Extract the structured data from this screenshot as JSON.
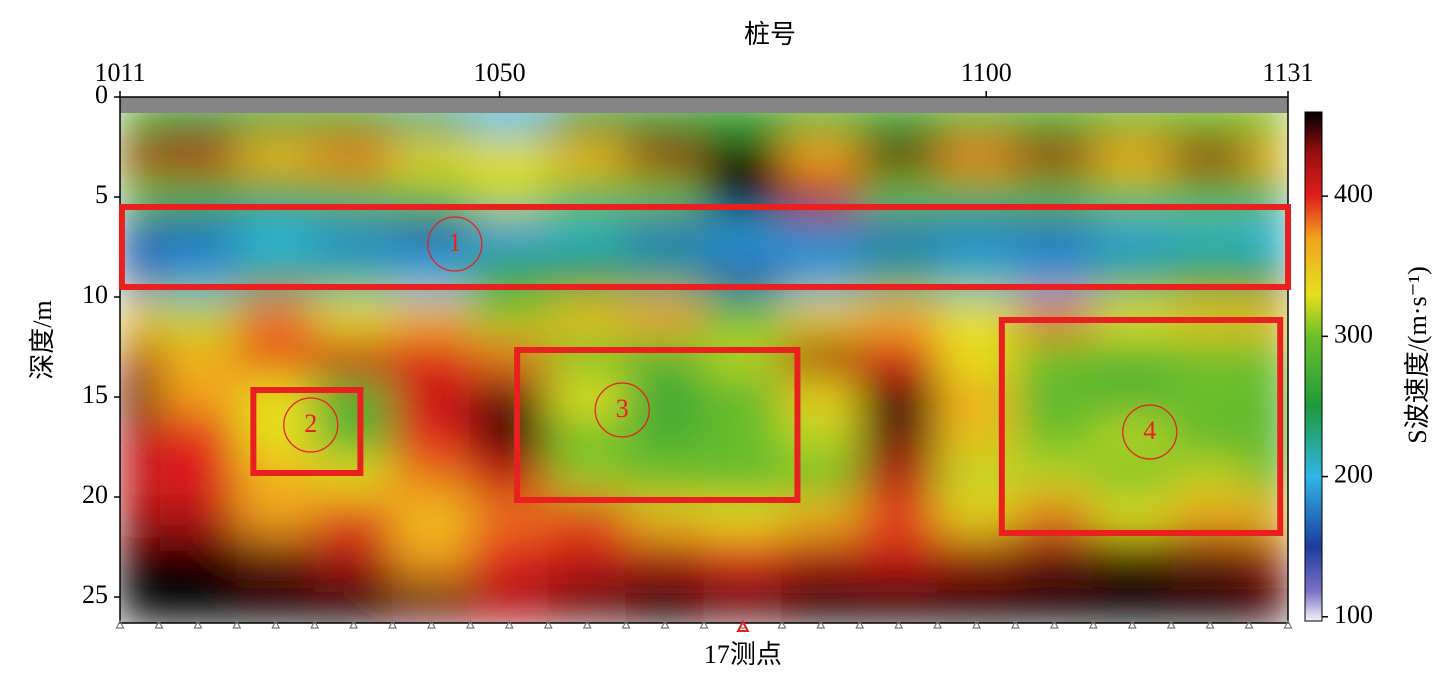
{
  "chart_data": {
    "type": "heatmap",
    "title": "桩号",
    "y_label": "深度/m",
    "colorbar_label": "S波速度/(m·s⁻¹)",
    "xlim": [
      1011,
      1131
    ],
    "xticks": [
      1011,
      1050,
      1100,
      1131
    ],
    "ylim": [
      0,
      26.3
    ],
    "yticks": [
      0,
      5,
      10,
      15,
      20,
      25
    ],
    "y_inverted": true,
    "clim": [
      97,
      460
    ],
    "cticks": [
      100,
      200,
      300,
      400
    ],
    "colorscale": [
      {
        "value": 97,
        "color": "#f6f2fb"
      },
      {
        "value": 118,
        "color": "#7a72c4"
      },
      {
        "value": 150,
        "color": "#1c3c9c"
      },
      {
        "value": 200,
        "color": "#2fb6e6"
      },
      {
        "value": 250,
        "color": "#1e9a3c"
      },
      {
        "value": 300,
        "color": "#6cc02a"
      },
      {
        "value": 330,
        "color": "#e6e01e"
      },
      {
        "value": 370,
        "color": "#f2a21e"
      },
      {
        "value": 400,
        "color": "#e01e1e"
      },
      {
        "value": 430,
        "color": "#9c0e0e"
      },
      {
        "value": 460,
        "color": "#000000"
      }
    ],
    "x": [
      1011,
      1019,
      1027,
      1035,
      1043,
      1051,
      1059,
      1067,
      1075,
      1083,
      1091,
      1099,
      1107,
      1115,
      1123,
      1131
    ],
    "depth": [
      1,
      3,
      5,
      7,
      9,
      11,
      13,
      15,
      17,
      19,
      21,
      23,
      25
    ],
    "values": [
      [
        280,
        250,
        260,
        270,
        230,
        200,
        250,
        260,
        270,
        280,
        270,
        280,
        280,
        290,
        300,
        300
      ],
      [
        430,
        420,
        360,
        380,
        340,
        330,
        360,
        430,
        460,
        370,
        440,
        380,
        430,
        370,
        430,
        360
      ],
      [
        300,
        280,
        260,
        290,
        300,
        320,
        290,
        300,
        460,
        420,
        300,
        280,
        290,
        300,
        290,
        280
      ],
      [
        160,
        170,
        200,
        180,
        160,
        190,
        210,
        170,
        190,
        180,
        170,
        180,
        170,
        190,
        210,
        200
      ],
      [
        170,
        190,
        230,
        220,
        200,
        260,
        250,
        230,
        160,
        190,
        230,
        210,
        190,
        230,
        260,
        250
      ],
      [
        340,
        320,
        380,
        330,
        360,
        310,
        350,
        370,
        300,
        340,
        360,
        330,
        380,
        330,
        350,
        360
      ],
      [
        420,
        360,
        390,
        410,
        400,
        380,
        300,
        290,
        320,
        430,
        400,
        330,
        300,
        290,
        300,
        300
      ],
      [
        450,
        370,
        330,
        280,
        410,
        440,
        330,
        270,
        290,
        340,
        450,
        360,
        290,
        280,
        300,
        290
      ],
      [
        420,
        400,
        330,
        280,
        400,
        450,
        300,
        280,
        300,
        320,
        440,
        350,
        300,
        320,
        290,
        290
      ],
      [
        410,
        400,
        360,
        330,
        380,
        410,
        310,
        300,
        290,
        300,
        420,
        320,
        320,
        300,
        320,
        290
      ],
      [
        430,
        420,
        370,
        390,
        350,
        380,
        390,
        350,
        330,
        360,
        390,
        340,
        380,
        330,
        370,
        360
      ],
      [
        460,
        460,
        440,
        420,
        370,
        400,
        410,
        420,
        400,
        420,
        410,
        430,
        440,
        450,
        440,
        430
      ],
      [
        460,
        460,
        460,
        460,
        440,
        420,
        440,
        460,
        440,
        460,
        460,
        460,
        460,
        460,
        460,
        450
      ]
    ],
    "no_data_depth": 0.8,
    "annotations": [
      {
        "label": "1",
        "x0": 1011.2,
        "x1": 1131,
        "y0": 5.5,
        "y1": 9.5,
        "label_x": 1045.4,
        "label_y": 7.35
      },
      {
        "label": "2",
        "x0": 1024.7,
        "x1": 1035.7,
        "y0": 14.65,
        "y1": 18.8,
        "label_x": 1030.6,
        "label_y": 16.4
      },
      {
        "label": "3",
        "x0": 1051.8,
        "x1": 1080.6,
        "y0": 12.65,
        "y1": 20.15,
        "label_x": 1062.6,
        "label_y": 15.65
      },
      {
        "label": "4",
        "x0": 1101.6,
        "x1": 1130.2,
        "y0": 11.15,
        "y1": 21.8,
        "label_x": 1116.8,
        "label_y": 16.75
      }
    ],
    "annotation_color": "#e82020",
    "stations": [
      1011,
      1015,
      1019,
      1023,
      1027,
      1031,
      1035,
      1039,
      1043,
      1047,
      1051,
      1055,
      1059,
      1063,
      1067,
      1071,
      1075,
      1079,
      1083,
      1087,
      1091,
      1095,
      1099,
      1103,
      1107,
      1111,
      1115,
      1119,
      1123,
      1127,
      1131
    ],
    "marker": {
      "x": 1075,
      "label": "17测点",
      "color": "#e82020"
    }
  }
}
